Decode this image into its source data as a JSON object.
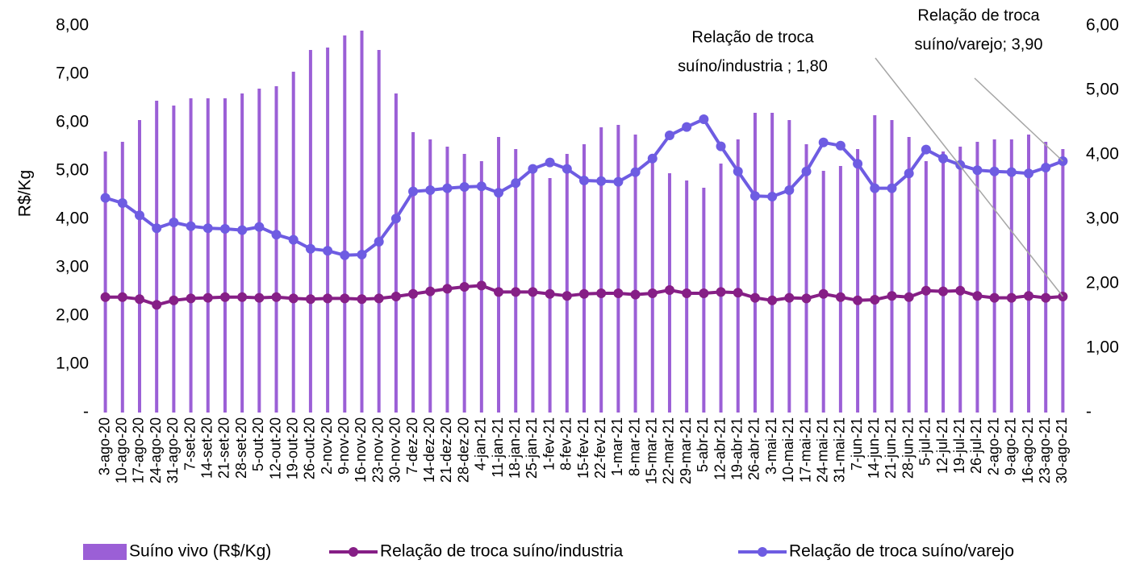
{
  "chart_data": {
    "type": "combo",
    "y_label": "R$/Kg",
    "categories": [
      "3-ago-20",
      "10-ago-20",
      "17-ago-20",
      "24-ago-20",
      "31-ago-20",
      "7-set-20",
      "14-set-20",
      "21-set-20",
      "28-set-20",
      "5-out-20",
      "12-out-20",
      "19-out-20",
      "26-out-20",
      "2-nov-20",
      "9-nov-20",
      "16-nov-20",
      "23-nov-20",
      "30-nov-20",
      "7-dez-20",
      "14-dez-20",
      "21-dez-20",
      "28-dez-20",
      "4-jan-21",
      "11-jan-21",
      "18-jan-21",
      "25-jan-21",
      "1-fev-21",
      "8-fev-21",
      "15-fev-21",
      "22-fev-21",
      "1-mar-21",
      "8-mar-21",
      "15-mar-21",
      "22-mar-21",
      "29-mar-21",
      "5-abr-21",
      "12-abr-21",
      "19-abr-21",
      "26-abr-21",
      "3-mai-21",
      "10-mai-21",
      "17-mai-21",
      "24-mai-21",
      "31-mai-21",
      "7-jun-21",
      "14-jun-21",
      "21-jun-21",
      "28-jun-21",
      "5-jul-21",
      "12-jul-21",
      "19-jul-21",
      "26-jul-21",
      "2-ago-21",
      "9-ago-21",
      "16-ago-21",
      "23-ago-21",
      "30-ago-21"
    ],
    "series": [
      {
        "name": "Suíno vivo (R$/Kg)",
        "type": "bar",
        "color": "#9b5fd6",
        "values": [
          5.4,
          5.6,
          6.05,
          6.45,
          6.35,
          6.5,
          6.5,
          6.5,
          6.6,
          6.7,
          6.75,
          7.05,
          7.5,
          7.55,
          7.8,
          7.9,
          7.5,
          6.6,
          5.8,
          5.65,
          5.5,
          5.35,
          5.2,
          5.7,
          5.45,
          5.0,
          4.85,
          5.35,
          5.55,
          5.9,
          5.95,
          5.75,
          5.35,
          4.95,
          4.8,
          4.65,
          5.15,
          5.65,
          6.2,
          6.2,
          6.05,
          5.55,
          5.0,
          5.1,
          5.45,
          6.15,
          6.05,
          5.7,
          5.2,
          5.4,
          5.5,
          5.6,
          5.65,
          5.65,
          5.75,
          5.6,
          5.45
        ]
      },
      {
        "name": "Relação de troca suíno/industria",
        "type": "line",
        "axis": "y2",
        "color": "#861f86",
        "values": [
          1.79,
          1.79,
          1.76,
          1.67,
          1.74,
          1.77,
          1.78,
          1.79,
          1.79,
          1.78,
          1.79,
          1.77,
          1.76,
          1.77,
          1.77,
          1.76,
          1.77,
          1.8,
          1.84,
          1.88,
          1.92,
          1.95,
          1.97,
          1.87,
          1.87,
          1.87,
          1.84,
          1.81,
          1.84,
          1.85,
          1.85,
          1.83,
          1.85,
          1.9,
          1.85,
          1.85,
          1.87,
          1.86,
          1.78,
          1.74,
          1.78,
          1.77,
          1.84,
          1.79,
          1.74,
          1.75,
          1.81,
          1.79,
          1.89,
          1.88,
          1.89,
          1.81,
          1.78,
          1.78,
          1.81,
          1.78,
          1.8
        ]
      },
      {
        "name": "Relação de troca suíno/varejo",
        "type": "line",
        "axis": "y2",
        "color": "#6e5ce2",
        "values": [
          3.33,
          3.25,
          3.06,
          2.86,
          2.95,
          2.89,
          2.86,
          2.85,
          2.83,
          2.88,
          2.76,
          2.68,
          2.54,
          2.51,
          2.44,
          2.45,
          2.65,
          3.01,
          3.43,
          3.45,
          3.48,
          3.5,
          3.51,
          3.41,
          3.56,
          3.78,
          3.88,
          3.78,
          3.6,
          3.59,
          3.58,
          3.73,
          3.94,
          4.3,
          4.43,
          4.55,
          4.13,
          3.74,
          3.36,
          3.35,
          3.45,
          3.74,
          4.19,
          4.14,
          3.86,
          3.48,
          3.48,
          3.71,
          4.08,
          3.94,
          3.84,
          3.76,
          3.74,
          3.73,
          3.71,
          3.8,
          3.9
        ]
      }
    ],
    "ylim": [
      0,
      8
    ],
    "yticks": [
      {
        "value": 0,
        "label": "-"
      },
      {
        "value": 1,
        "label": "1,00"
      },
      {
        "value": 2,
        "label": "2,00"
      },
      {
        "value": 3,
        "label": "3,00"
      },
      {
        "value": 4,
        "label": "4,00"
      },
      {
        "value": 5,
        "label": "5,00"
      },
      {
        "value": 6,
        "label": "6,00"
      },
      {
        "value": 7,
        "label": "7,00"
      },
      {
        "value": 8,
        "label": "8,00"
      }
    ],
    "y2lim": [
      0,
      6
    ],
    "y2ticks": [
      {
        "value": 0,
        "label": "-"
      },
      {
        "value": 1,
        "label": "1,00"
      },
      {
        "value": 2,
        "label": "2,00"
      },
      {
        "value": 3,
        "label": "3,00"
      },
      {
        "value": 4,
        "label": "4,00"
      },
      {
        "value": 5,
        "label": "5,00"
      },
      {
        "value": 6,
        "label": "6,00"
      }
    ],
    "annotations": [
      {
        "lines": [
          "Relação de troca",
          "suíno/industria ; 1,80"
        ]
      },
      {
        "lines": [
          "Relação de troca",
          "suíno/varejo; 3,90"
        ]
      }
    ]
  }
}
